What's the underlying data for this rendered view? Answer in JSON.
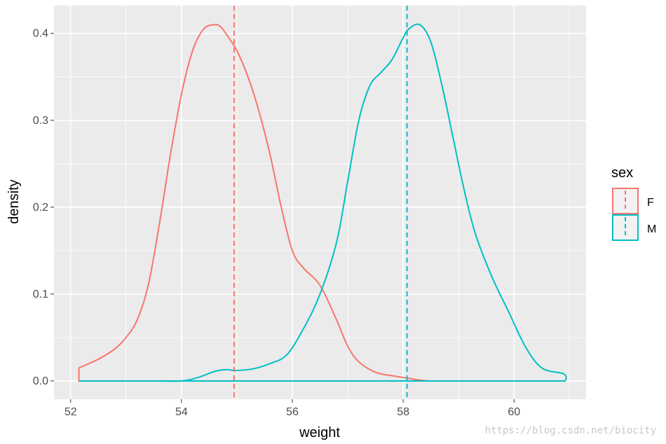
{
  "chart_data": {
    "type": "area",
    "title": "",
    "xlabel": "weight",
    "ylabel": "density",
    "xlim": [
      51.7,
      61.3
    ],
    "ylim": [
      -0.021,
      0.432
    ],
    "x_ticks": [
      52,
      54,
      56,
      58,
      60
    ],
    "y_ticks": [
      0.0,
      0.1,
      0.2,
      0.3,
      0.4
    ],
    "x_tick_labels": [
      "52",
      "54",
      "56",
      "58",
      "60"
    ],
    "y_tick_labels": [
      "0.0",
      "0.1",
      "0.2",
      "0.3",
      "0.4"
    ],
    "grid": true,
    "legend_title": "sex",
    "legend_position": "right",
    "panel_background": "#ebebeb",
    "series": [
      {
        "name": "F",
        "color": "#f8766d",
        "mean": 54.95,
        "x": [
          52.15,
          52.5,
          52.8,
          53.0,
          53.2,
          53.4,
          53.6,
          53.8,
          54.0,
          54.2,
          54.4,
          54.6,
          54.7,
          54.8,
          55.0,
          55.2,
          55.4,
          55.6,
          55.8,
          56.0,
          56.2,
          56.5,
          56.8,
          57.0,
          57.2,
          57.5,
          57.8,
          58.0,
          58.3,
          58.5,
          58.7,
          59.0
        ],
        "y": [
          0.015,
          0.025,
          0.037,
          0.05,
          0.07,
          0.11,
          0.18,
          0.26,
          0.33,
          0.38,
          0.405,
          0.41,
          0.408,
          0.4,
          0.38,
          0.35,
          0.31,
          0.26,
          0.2,
          0.15,
          0.13,
          0.11,
          0.07,
          0.04,
          0.022,
          0.01,
          0.006,
          0.004,
          0.001,
          0.0,
          0.0,
          0.0
        ]
      },
      {
        "name": "M",
        "color": "#00bfc4",
        "mean": 58.07,
        "x": [
          52.15,
          53.5,
          54.0,
          54.3,
          54.6,
          54.8,
          55.0,
          55.3,
          55.6,
          55.9,
          56.2,
          56.5,
          56.8,
          57.0,
          57.2,
          57.4,
          57.6,
          57.8,
          58.0,
          58.1,
          58.3,
          58.5,
          58.7,
          58.9,
          59.1,
          59.3,
          59.6,
          59.9,
          60.2,
          60.5,
          60.9,
          60.93
        ],
        "y": [
          0.0,
          0.0,
          0.0,
          0.004,
          0.011,
          0.013,
          0.012,
          0.014,
          0.02,
          0.03,
          0.06,
          0.1,
          0.16,
          0.23,
          0.3,
          0.34,
          0.355,
          0.37,
          0.395,
          0.405,
          0.41,
          0.39,
          0.34,
          0.28,
          0.22,
          0.17,
          0.12,
          0.08,
          0.04,
          0.015,
          0.008,
          0.0
        ]
      }
    ]
  },
  "watermark": "https://blog.csdn.net/biocity"
}
